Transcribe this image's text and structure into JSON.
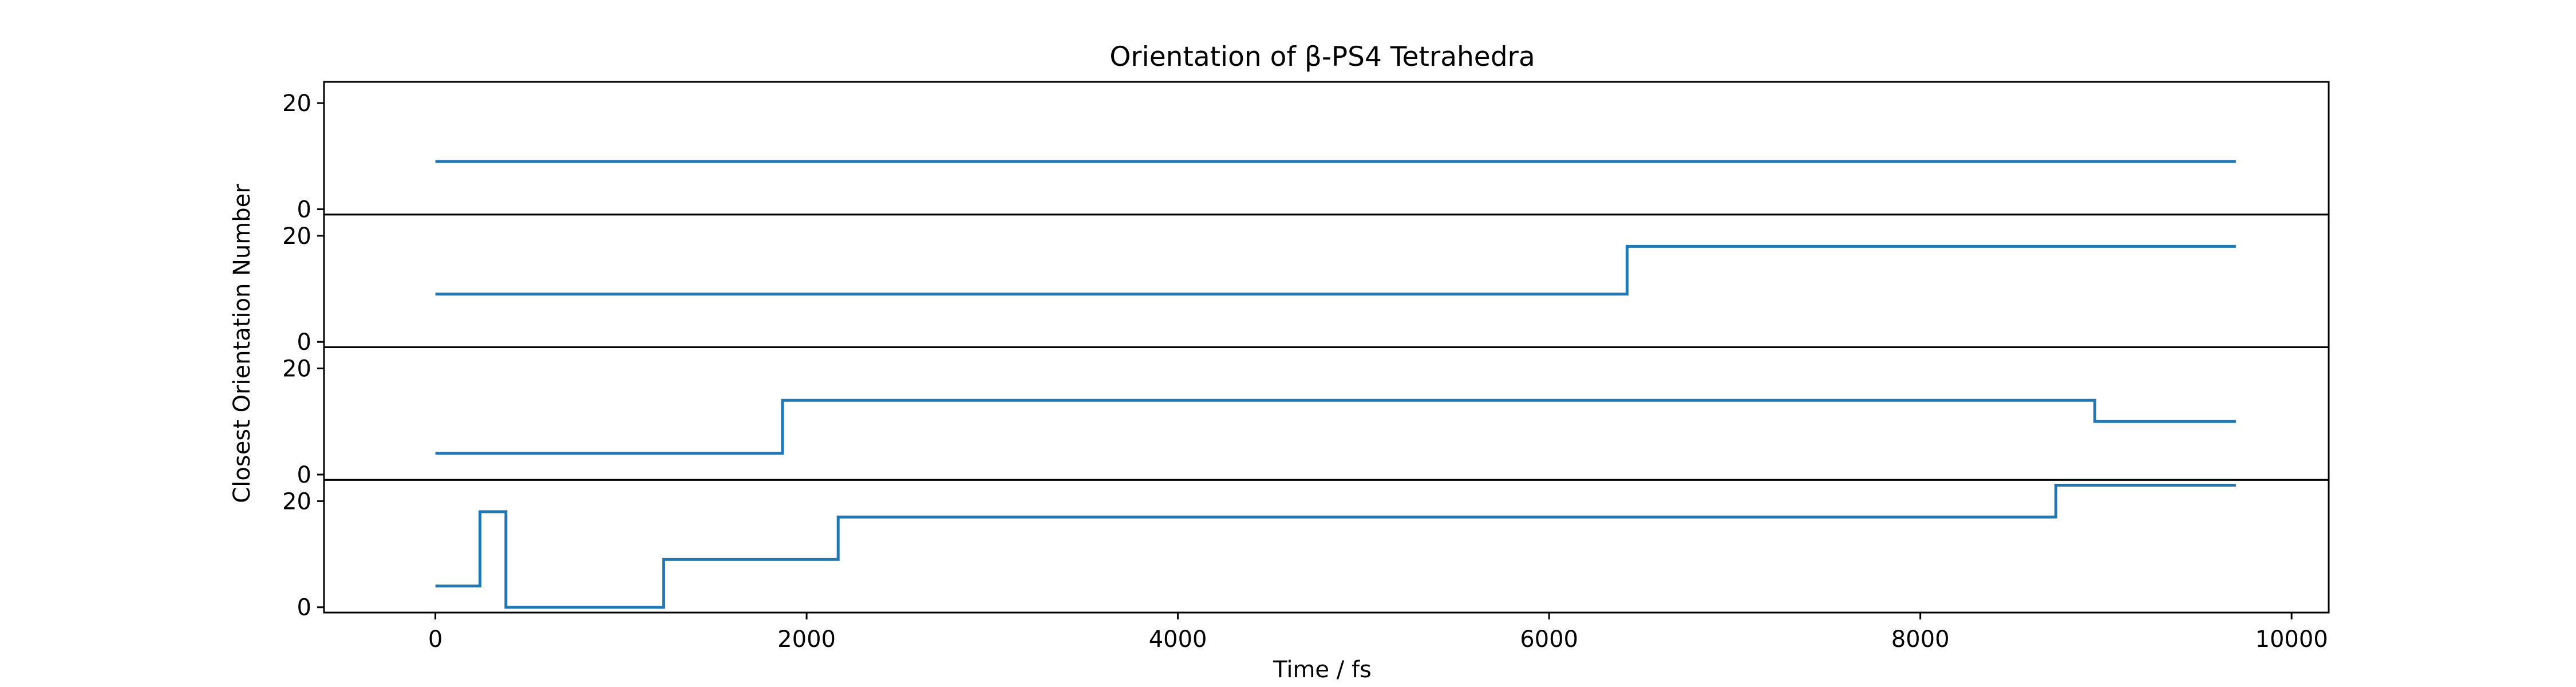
{
  "chart_data": {
    "type": "line",
    "title": "Orientation of β-PS4 Tetrahedra",
    "xlabel": "Time / fs",
    "ylabel": "Closest Orientation Number",
    "xlim": [
      -600,
      10200
    ],
    "ylim": [
      -1,
      24
    ],
    "xticks": [
      0,
      2000,
      4000,
      6000,
      8000,
      10000
    ],
    "yticks": [
      0,
      20
    ],
    "grid": false,
    "step": "post",
    "colors": {
      "series": "#1f77b4"
    },
    "panels": [
      {
        "name": "",
        "x": [
          0,
          9700
        ],
        "y": [
          9,
          9
        ]
      },
      {
        "name": "",
        "x": [
          0,
          6420,
          9700
        ],
        "y": [
          9,
          18,
          18
        ]
      },
      {
        "name": "",
        "x": [
          0,
          1870,
          8940,
          9700
        ],
        "y": [
          4,
          14,
          10,
          10
        ]
      },
      {
        "name": "",
        "x": [
          0,
          240,
          380,
          1230,
          2170,
          8730,
          9700
        ],
        "y": [
          4,
          18,
          0,
          9,
          17,
          23,
          23
        ]
      }
    ]
  }
}
